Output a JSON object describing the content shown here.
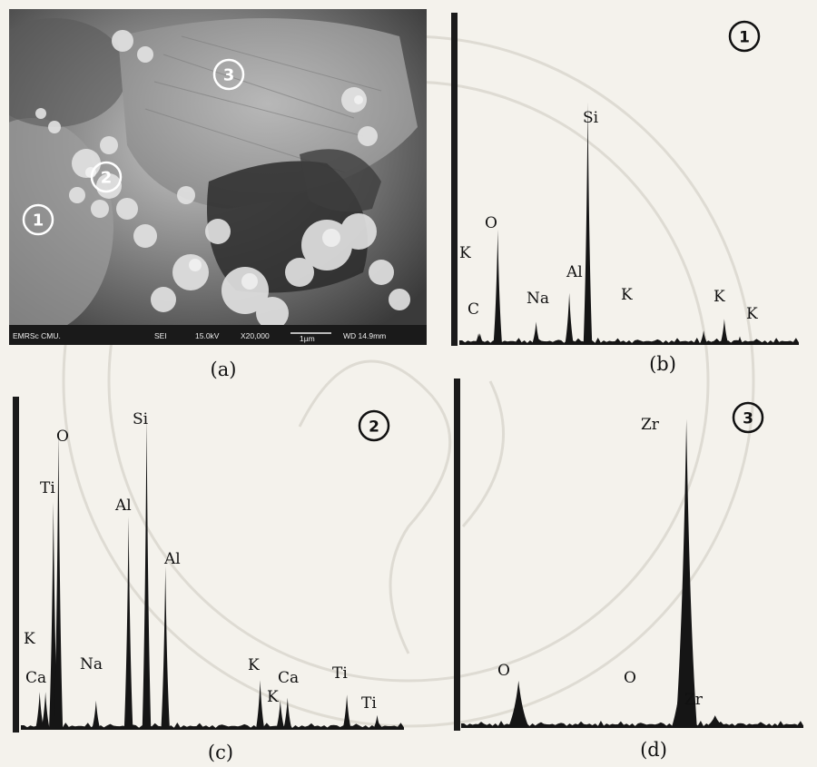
{
  "panels": {
    "a": {
      "caption": "(a)",
      "sem_bar": [
        "EMRSc CMU.",
        "SEI",
        "15.0kV",
        "X20,000",
        "1µm",
        "WD 14.9mm"
      ],
      "markers": [
        {
          "label": "1"
        },
        {
          "label": "2"
        },
        {
          "label": "3"
        }
      ]
    },
    "b": {
      "caption": "(b)",
      "marker": "1"
    },
    "c": {
      "caption": "(c)",
      "marker": "2"
    },
    "d": {
      "caption": "(d)",
      "marker": "3"
    }
  },
  "chart_data": [
    {
      "type": "area",
      "panel": "b",
      "description_marker": "1",
      "xlim": [
        0,
        10
      ],
      "ylim": [
        0,
        100
      ],
      "peaks": [
        {
          "label": "C",
          "x": 0.28,
          "y": 4
        },
        {
          "label": "K",
          "x": 0.26,
          "y": 4
        },
        {
          "label": "O",
          "x": 0.52,
          "y": 40
        },
        {
          "label": "Na",
          "x": 1.04,
          "y": 8
        },
        {
          "label": "Al",
          "x": 1.49,
          "y": 18
        },
        {
          "label": "Si",
          "x": 1.74,
          "y": 84
        },
        {
          "label": "K",
          "x": 3.31,
          "y": 5
        },
        {
          "label": "K",
          "x": 3.59,
          "y": 9
        },
        {
          "label": "K",
          "x": 3.8,
          "y": 3
        }
      ],
      "labels_text": [
        "K",
        "C",
        "O",
        "Na",
        "Al",
        "Si",
        "K",
        "K",
        "K"
      ]
    },
    {
      "type": "area",
      "panel": "c",
      "description_marker": "2",
      "xlim": [
        0,
        10
      ],
      "ylim": [
        0,
        100
      ],
      "peaks": [
        {
          "label": "Ca",
          "x": 0.34,
          "y": 13
        },
        {
          "label": "K",
          "x": 0.26,
          "y": 13
        },
        {
          "label": "Ti",
          "x": 0.45,
          "y": 78
        },
        {
          "label": "O",
          "x": 0.52,
          "y": 102
        },
        {
          "label": "Na",
          "x": 1.04,
          "y": 10
        },
        {
          "label": "Al",
          "x": 1.49,
          "y": 73
        },
        {
          "label": "Si",
          "x": 1.74,
          "y": 107
        },
        {
          "label": "Al",
          "x": 2.0,
          "y": 56
        },
        {
          "label": "K",
          "x": 3.31,
          "y": 17
        },
        {
          "label": "K",
          "x": 3.59,
          "y": 10
        },
        {
          "label": "Ca",
          "x": 3.69,
          "y": 11
        },
        {
          "label": "Ti",
          "x": 4.51,
          "y": 12
        },
        {
          "label": "Ti",
          "x": 4.93,
          "y": 5
        }
      ],
      "labels_text": [
        "K",
        "Ca",
        "Ti",
        "O",
        "Na",
        "Al",
        "Si",
        "Al",
        "K",
        "K",
        "Ca",
        "Ti",
        "Ti"
      ]
    },
    {
      "type": "area",
      "panel": "d",
      "description_marker": "3",
      "xlim": [
        0,
        10
      ],
      "ylim": [
        0,
        100
      ],
      "peaks": [
        {
          "label": "O",
          "x": 0.52,
          "y": 15
        },
        {
          "label": "O",
          "x": 2.0,
          "y": 20
        },
        {
          "label": "Zr",
          "x": 2.04,
          "y": 98
        },
        {
          "label": "Zr",
          "x": 2.3,
          "y": 4
        }
      ],
      "labels_text": [
        "O",
        "O",
        "Zr",
        "Zr"
      ]
    }
  ],
  "colors": {
    "peak_fill": "#151515",
    "paper": "#f4f2ec"
  }
}
